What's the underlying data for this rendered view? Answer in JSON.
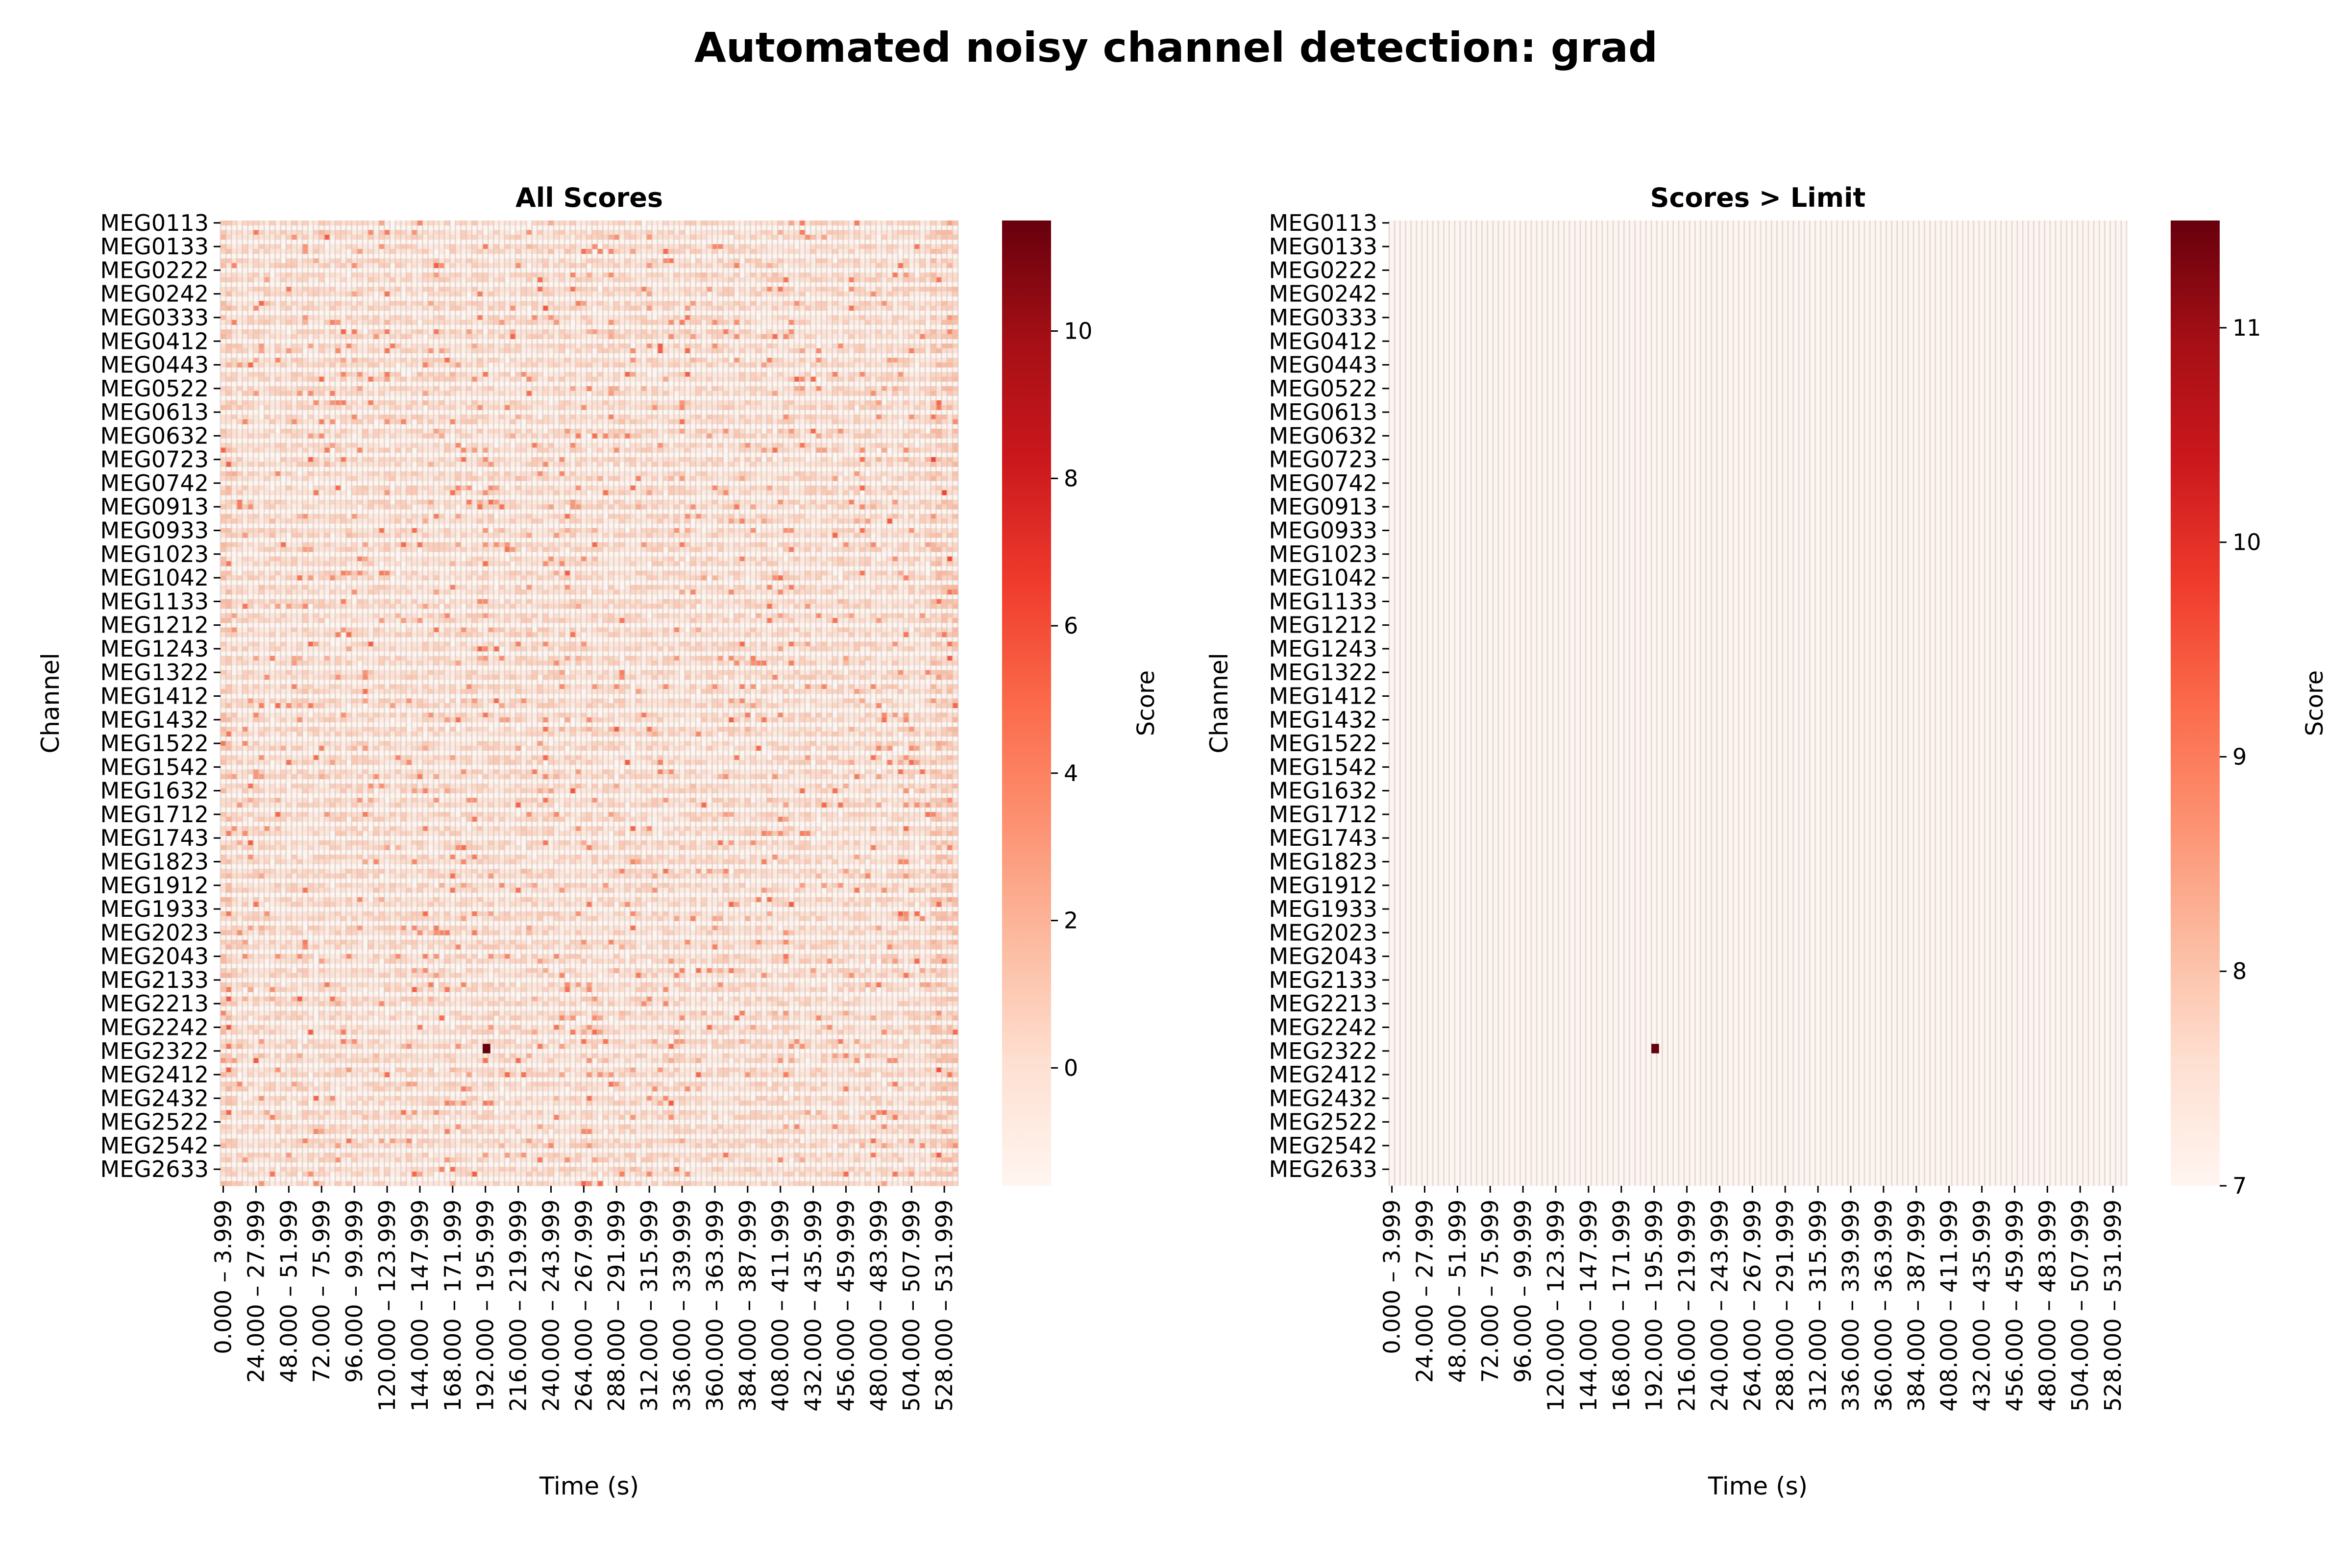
{
  "figure": {
    "suptitle": "Automated noisy channel detection: grad"
  },
  "chart_data": [
    {
      "type": "heatmap",
      "title": "All Scores",
      "xlabel": "Time (s)",
      "ylabel": "Channel",
      "colorbar_label": "Score",
      "colormap": "Reds",
      "vmin": -1.6,
      "vmax": 11.5,
      "colorbar_ticks": [
        0,
        2,
        4,
        6,
        8,
        10
      ],
      "n_rows": 204,
      "n_cols": 135,
      "x_ticks": [
        "0.000 – 3.999",
        "24.000 – 27.999",
        "48.000 – 51.999",
        "72.000 – 75.999",
        "96.000 – 99.999",
        "120.000 – 123.999",
        "144.000 – 147.999",
        "168.000 – 171.999",
        "192.000 – 195.999",
        "216.000 – 219.999",
        "240.000 – 243.999",
        "264.000 – 267.999",
        "288.000 – 291.999",
        "312.000 – 315.999",
        "336.000 – 339.999",
        "360.000 – 363.999",
        "384.000 – 387.999",
        "408.000 – 411.999",
        "432.000 – 435.999",
        "456.000 – 459.999",
        "480.000 – 483.999",
        "504.000 – 507.999",
        "528.000 – 531.999"
      ],
      "y_ticks": [
        "MEG0113",
        "MEG0133",
        "MEG0222",
        "MEG0242",
        "MEG0333",
        "MEG0412",
        "MEG0443",
        "MEG0522",
        "MEG0613",
        "MEG0632",
        "MEG0723",
        "MEG0742",
        "MEG0913",
        "MEG0933",
        "MEG1023",
        "MEG1042",
        "MEG1133",
        "MEG1212",
        "MEG1243",
        "MEG1322",
        "MEG1412",
        "MEG1432",
        "MEG1522",
        "MEG1542",
        "MEG1632",
        "MEG1712",
        "MEG1743",
        "MEG1823",
        "MEG1912",
        "MEG1933",
        "MEG2023",
        "MEG2043",
        "MEG2133",
        "MEG2213",
        "MEG2242",
        "MEG2322",
        "MEG2412",
        "MEG2432",
        "MEG2522",
        "MEG2542",
        "MEG2633"
      ],
      "notable_cells": [
        {
          "channel": "MEG2322",
          "time": "192.000 – 195.999",
          "value": 11.5
        }
      ]
    },
    {
      "type": "heatmap",
      "title": "Scores > Limit",
      "xlabel": "Time (s)",
      "ylabel": "Channel",
      "colorbar_label": "Score",
      "colormap": "Reds",
      "vmin": 7,
      "vmax": 11.5,
      "colorbar_ticks": [
        7,
        8,
        9,
        10,
        11
      ],
      "n_rows": 204,
      "n_cols": 135,
      "x_ticks": [
        "0.000 – 3.999",
        "24.000 – 27.999",
        "48.000 – 51.999",
        "72.000 – 75.999",
        "96.000 – 99.999",
        "120.000 – 123.999",
        "144.000 – 147.999",
        "168.000 – 171.999",
        "192.000 – 195.999",
        "216.000 – 219.999",
        "240.000 – 243.999",
        "264.000 – 267.999",
        "288.000 – 291.999",
        "312.000 – 315.999",
        "336.000 – 339.999",
        "360.000 – 363.999",
        "384.000 – 387.999",
        "408.000 – 411.999",
        "432.000 – 435.999",
        "456.000 – 459.999",
        "480.000 – 483.999",
        "504.000 – 507.999",
        "528.000 – 531.999"
      ],
      "y_ticks": [
        "MEG0113",
        "MEG0133",
        "MEG0222",
        "MEG0242",
        "MEG0333",
        "MEG0412",
        "MEG0443",
        "MEG0522",
        "MEG0613",
        "MEG0632",
        "MEG0723",
        "MEG0742",
        "MEG0913",
        "MEG0933",
        "MEG1023",
        "MEG1042",
        "MEG1133",
        "MEG1212",
        "MEG1243",
        "MEG1322",
        "MEG1412",
        "MEG1432",
        "MEG1522",
        "MEG1542",
        "MEG1632",
        "MEG1712",
        "MEG1743",
        "MEG1823",
        "MEG1912",
        "MEG1933",
        "MEG2023",
        "MEG2043",
        "MEG2133",
        "MEG2213",
        "MEG2242",
        "MEG2322",
        "MEG2412",
        "MEG2432",
        "MEG2522",
        "MEG2542",
        "MEG2633"
      ],
      "notable_cells": [
        {
          "channel": "MEG2322",
          "time": "192.000 – 195.999",
          "value": 11.5
        }
      ]
    }
  ]
}
